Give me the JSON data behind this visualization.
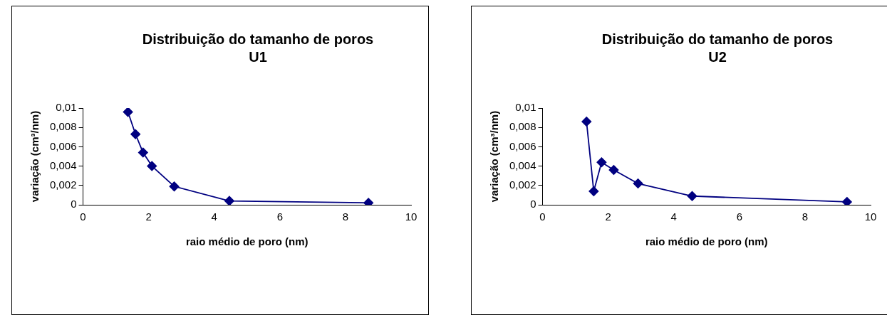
{
  "chart_data": [
    {
      "type": "line",
      "title": "Distribuição do tamanho de poros U1",
      "xlabel": "raio médio de poro (nm)",
      "ylabel": "variação (cm³/nm)",
      "x": [
        1.37,
        1.6,
        1.83,
        2.1,
        2.78,
        4.46,
        8.7
      ],
      "values": [
        0.0096,
        0.0073,
        0.0054,
        0.004,
        0.0019,
        0.0004,
        0.0002
      ],
      "color": "#000080",
      "marker": "diamond",
      "xlim": [
        0,
        10
      ],
      "xticks": [
        0,
        2,
        4,
        6,
        8,
        10
      ],
      "ylim": [
        0,
        0.01
      ],
      "yticks": [
        0,
        {
          "value": 0.002,
          "label": "0,002"
        },
        {
          "value": 0.004,
          "label": "0,004"
        },
        {
          "value": 0.006,
          "label": "0,006"
        },
        {
          "value": 0.008,
          "label": "0,008"
        },
        {
          "value": 0.01,
          "label": "0,01"
        }
      ]
    },
    {
      "type": "line",
      "title": "Distribuição do tamanho de poros U2",
      "xlabel": "raio médio de poro (nm)",
      "ylabel": "variação (cm³/nm)",
      "x": [
        1.34,
        1.56,
        1.8,
        2.17,
        2.91,
        4.56,
        9.28
      ],
      "values": [
        0.0086,
        0.0014,
        0.0044,
        0.0036,
        0.0022,
        0.0009,
        0.0003
      ],
      "color": "#000080",
      "marker": "diamond",
      "xlim": [
        0,
        10
      ],
      "xticks": [
        0,
        2,
        4,
        6,
        8,
        10
      ],
      "ylim": [
        0,
        0.01
      ],
      "yticks": [
        0,
        {
          "value": 0.002,
          "label": "0,002"
        },
        {
          "value": 0.004,
          "label": "0,004"
        },
        {
          "value": 0.006,
          "label": "0,006"
        },
        {
          "value": 0.008,
          "label": "0,008"
        },
        {
          "value": 0.01,
          "label": "0,01"
        }
      ]
    }
  ]
}
